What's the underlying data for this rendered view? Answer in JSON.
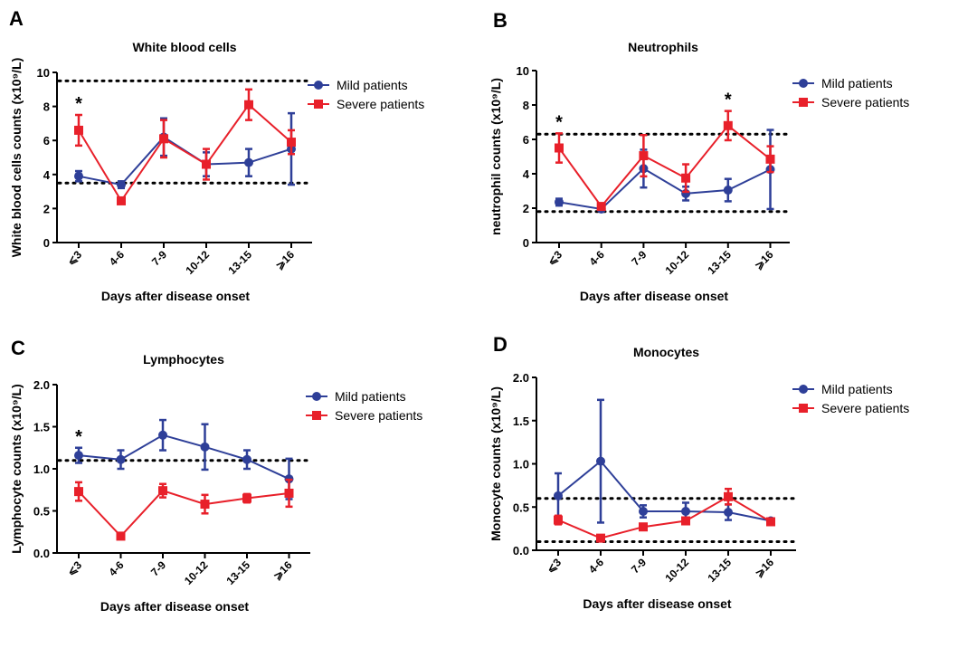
{
  "colors": {
    "mild": "#2e3f98",
    "severe": "#e8202a"
  },
  "chart_data": [
    {
      "type": "line",
      "letter": "A",
      "title": "White blood cells",
      "xlabel": "Days after disease onset",
      "ylabel": "White blood cells counts (x10⁹/L)",
      "categories": [
        "⩽3",
        "4-6",
        "7-9",
        "10-12",
        "13-15",
        "⩾16"
      ],
      "ylim": [
        0,
        10
      ],
      "yticks": [
        0,
        2,
        4,
        6,
        8,
        10
      ],
      "yticklabels": [
        "0",
        "2",
        "4",
        "6",
        "8",
        "10"
      ],
      "reference_lines": [
        9.5,
        3.5
      ],
      "significant": [
        "⩽3"
      ],
      "significance_mark": "*",
      "grid": false,
      "legend": "right",
      "series": [
        {
          "name": "Mild patients",
          "marker": "circle",
          "values": [
            3.9,
            3.4,
            6.2,
            4.6,
            4.7,
            5.5
          ],
          "errors": [
            0.3,
            0.2,
            1.1,
            0.7,
            0.8,
            2.1
          ]
        },
        {
          "name": "Severe patients",
          "marker": "square",
          "values": [
            6.6,
            2.45,
            6.1,
            4.6,
            8.1,
            5.9
          ],
          "errors": [
            0.9,
            0.1,
            1.1,
            0.9,
            0.9,
            0.7
          ]
        }
      ]
    },
    {
      "type": "line",
      "letter": "B",
      "title": "Neutrophils",
      "xlabel": "Days after disease onset",
      "ylabel": "neutrophil counts (x10⁹/L)",
      "categories": [
        "⩽3",
        "4-6",
        "7-9",
        "10-12",
        "13-15",
        "⩾16"
      ],
      "ylim": [
        0,
        10
      ],
      "yticks": [
        0,
        2,
        4,
        6,
        8,
        10
      ],
      "yticklabels": [
        "0",
        "2",
        "4",
        "6",
        "8",
        "10"
      ],
      "reference_lines": [
        6.3,
        1.8
      ],
      "significant": [
        "⩽3",
        "13-15"
      ],
      "significance_mark": "*",
      "grid": false,
      "legend": "right",
      "series": [
        {
          "name": "Mild patients",
          "marker": "circle",
          "values": [
            2.35,
            1.95,
            4.3,
            2.85,
            3.05,
            4.25
          ],
          "errors": [
            0.2,
            0.1,
            1.1,
            0.4,
            0.65,
            2.3
          ]
        },
        {
          "name": "Severe patients",
          "marker": "square",
          "values": [
            5.5,
            2.1,
            5.05,
            3.75,
            6.8,
            4.85
          ],
          "errors": [
            0.85,
            0.1,
            1.2,
            0.8,
            0.85,
            0.75
          ]
        }
      ]
    },
    {
      "type": "line",
      "letter": "C",
      "title": "Lymphocytes",
      "xlabel": "Days after disease onset",
      "ylabel": "Lymphocyte counts (x10⁹/L)",
      "categories": [
        "⩽3",
        "4-6",
        "7-9",
        "10-12",
        "13-15",
        "⩾16"
      ],
      "ylim": [
        0,
        2
      ],
      "yticks": [
        0,
        0.5,
        1,
        1.5,
        2
      ],
      "yticklabels": [
        "0.0",
        "0.5",
        "1.0",
        "1.5",
        "2.0"
      ],
      "reference_lines": [
        1.1
      ],
      "significant": [
        "⩽3"
      ],
      "significance_mark": "*",
      "grid": false,
      "legend": "right",
      "series": [
        {
          "name": "Mild patients",
          "marker": "circle",
          "values": [
            1.16,
            1.11,
            1.4,
            1.26,
            1.11,
            0.88
          ],
          "errors": [
            0.09,
            0.11,
            0.18,
            0.27,
            0.11,
            0.24
          ]
        },
        {
          "name": "Severe patients",
          "marker": "square",
          "values": [
            0.73,
            0.2,
            0.74,
            0.58,
            0.65,
            0.71
          ],
          "errors": [
            0.11,
            0.02,
            0.08,
            0.11,
            0.05,
            0.16
          ]
        }
      ]
    },
    {
      "type": "line",
      "letter": "D",
      "title": "Monocytes",
      "xlabel": "Days after disease onset",
      "ylabel": "Monocyte counts (x10⁹/L)",
      "categories": [
        "⩽3",
        "4-6",
        "7-9",
        "10-12",
        "13-15",
        "⩾16"
      ],
      "ylim": [
        0,
        2
      ],
      "yticks": [
        0,
        0.5,
        1,
        1.5,
        2
      ],
      "yticklabels": [
        "0.0",
        "0.5",
        "1.0",
        "1.5",
        "2.0"
      ],
      "reference_lines": [
        0.6,
        0.1
      ],
      "significant": [],
      "significance_mark": "*",
      "grid": false,
      "legend": "right",
      "series": [
        {
          "name": "Mild patients",
          "marker": "circle",
          "values": [
            0.63,
            1.03,
            0.45,
            0.45,
            0.44,
            0.34
          ],
          "errors": [
            0.26,
            0.71,
            0.07,
            0.1,
            0.09,
            0.02
          ]
        },
        {
          "name": "Severe patients",
          "marker": "square",
          "values": [
            0.35,
            0.14,
            0.27,
            0.34,
            0.62,
            0.33
          ],
          "errors": [
            0.05,
            0.02,
            0.02,
            0.02,
            0.09,
            0.02
          ]
        }
      ]
    }
  ]
}
